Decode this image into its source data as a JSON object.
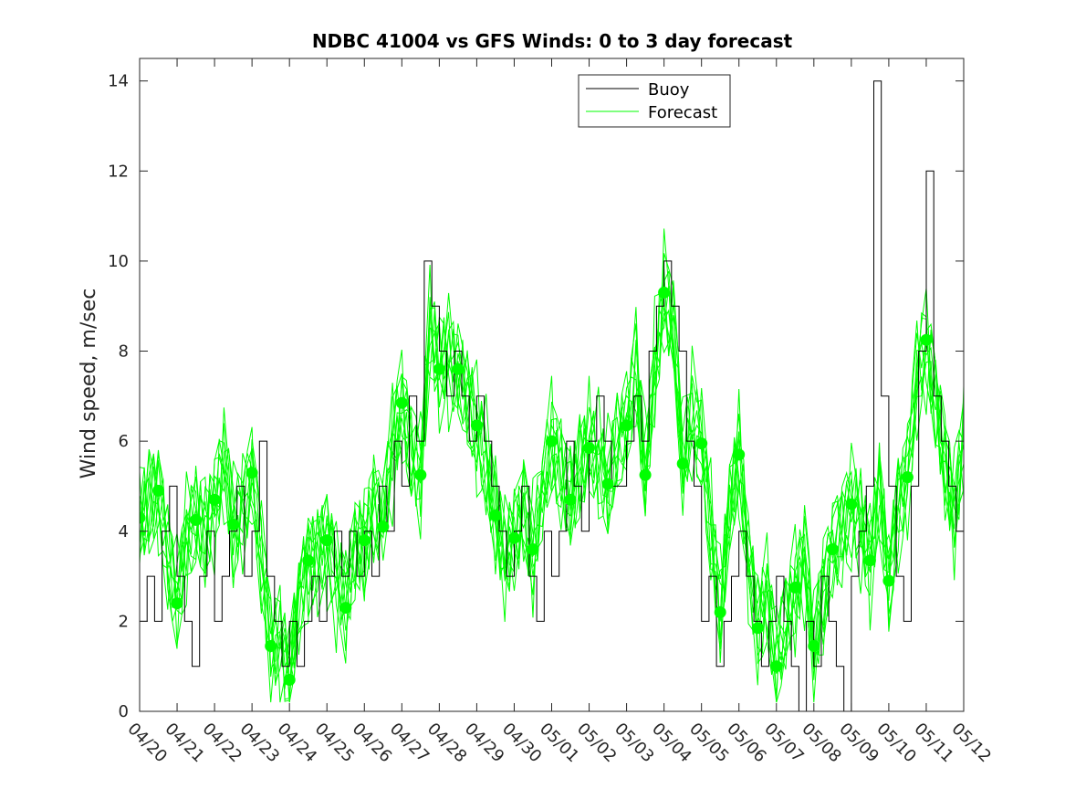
{
  "chart_data": {
    "type": "line",
    "title": "NDBC 41004 vs GFS Winds: 0 to 3 day forecast",
    "xlabel": "",
    "ylabel": "Wind speed, m/sec",
    "xlim": [
      0,
      22
    ],
    "ylim": [
      0,
      14.5
    ],
    "x_tick_labels": [
      "04/20",
      "04/21",
      "04/22",
      "04/23",
      "04/24",
      "04/25",
      "04/26",
      "04/27",
      "04/28",
      "04/29",
      "04/30",
      "05/01",
      "05/02",
      "05/03",
      "05/04",
      "05/05",
      "05/06",
      "05/07",
      "05/08",
      "05/09",
      "05/10",
      "05/11",
      "05/12"
    ],
    "y_ticks": [
      0,
      2,
      4,
      6,
      8,
      10,
      12,
      14
    ],
    "y_tick_labels": [
      "0",
      "2",
      "4",
      "6",
      "8",
      "10",
      "12",
      "14"
    ],
    "legend": {
      "position": "top-center",
      "entries": [
        "Buoy",
        "Forecast"
      ]
    },
    "grid": false,
    "colors": {
      "buoy": "#000000",
      "forecast": "#00ff00"
    },
    "buoy_series": {
      "name": "Buoy",
      "note_x_units": "days after 04/20",
      "x": [
        0.0,
        0.2,
        0.4,
        0.6,
        0.8,
        1.0,
        1.2,
        1.4,
        1.6,
        1.8,
        2.0,
        2.2,
        2.4,
        2.6,
        2.8,
        3.0,
        3.2,
        3.4,
        3.6,
        3.8,
        4.0,
        4.2,
        4.4,
        4.6,
        4.8,
        5.0,
        5.2,
        5.4,
        5.6,
        5.8,
        6.0,
        6.2,
        6.4,
        6.6,
        6.8,
        7.0,
        7.2,
        7.4,
        7.6,
        7.8,
        8.0,
        8.2,
        8.4,
        8.6,
        8.8,
        9.0,
        9.2,
        9.4,
        9.6,
        9.8,
        10.0,
        10.2,
        10.4,
        10.6,
        10.8,
        11.0,
        11.2,
        11.4,
        11.6,
        11.8,
        12.0,
        12.2,
        12.4,
        12.6,
        12.8,
        13.0,
        13.2,
        13.4,
        13.6,
        13.8,
        14.0,
        14.2,
        14.4,
        14.6,
        14.8,
        15.0,
        15.2,
        15.4,
        15.6,
        15.8,
        16.0,
        16.2,
        16.4,
        16.6,
        16.8,
        17.0,
        17.2,
        17.4,
        17.6,
        17.8,
        18.0,
        18.2,
        18.4,
        18.6,
        18.8,
        19.0,
        19.2,
        19.4,
        19.6,
        19.8,
        20.0,
        20.2,
        20.4,
        20.6,
        20.8,
        21.0,
        21.2,
        21.4,
        21.6,
        21.8,
        22.0
      ],
      "y": [
        2,
        3,
        2,
        4,
        5,
        3,
        2,
        1,
        3,
        4,
        2,
        3,
        4,
        5,
        3,
        4,
        6,
        3,
        2,
        1,
        2,
        1,
        2,
        3,
        2,
        3,
        4,
        3,
        4,
        3,
        4,
        3,
        5,
        4,
        6,
        5,
        7,
        6,
        10,
        9,
        8,
        7,
        8,
        7,
        6,
        7,
        6,
        5,
        4,
        3,
        4,
        5,
        3,
        2,
        4,
        3,
        4,
        6,
        5,
        4,
        6,
        7,
        6,
        5,
        5,
        6,
        7,
        6,
        8,
        9,
        10,
        9,
        8,
        6,
        5,
        2,
        3,
        1,
        2,
        3,
        4,
        3,
        2,
        1,
        2,
        3,
        2,
        1,
        0,
        2,
        1,
        3,
        2,
        1,
        0,
        3,
        4,
        5,
        14,
        7,
        5,
        3,
        2,
        5,
        8,
        12,
        7,
        6,
        5,
        4,
        5
      ]
    },
    "forecast_series": {
      "name": "Forecast",
      "runs": 10,
      "x": [
        0.0,
        0.25,
        0.5,
        0.75,
        1.0,
        1.25,
        1.5,
        1.75,
        2.0,
        2.25,
        2.5,
        2.75,
        3.0,
        3.25,
        3.5,
        3.75,
        4.0,
        4.25,
        4.5,
        4.75,
        5.0,
        5.25,
        5.5,
        5.75,
        6.0,
        6.25,
        6.5,
        6.75,
        7.0,
        7.25,
        7.5,
        7.75,
        8.0,
        8.25,
        8.5,
        8.75,
        9.0,
        9.25,
        9.5,
        9.75,
        10.0,
        10.25,
        10.5,
        10.75,
        11.0,
        11.25,
        11.5,
        11.75,
        12.0,
        12.25,
        12.5,
        12.75,
        13.0,
        13.25,
        13.5,
        13.75,
        14.0,
        14.25,
        14.5,
        14.75,
        15.0,
        15.25,
        15.5,
        15.75,
        16.0,
        16.25,
        16.5,
        16.75,
        17.0,
        17.25,
        17.5,
        17.75,
        18.0,
        18.25,
        18.5,
        18.75,
        19.0,
        19.25,
        19.5,
        19.75,
        20.0,
        20.25,
        20.5,
        20.75,
        21.0,
        21.25,
        21.5,
        21.75,
        22.0
      ],
      "y": [
        4.3,
        4.6,
        4.9,
        3.5,
        2.4,
        3.8,
        4.3,
        4.0,
        4.6,
        5.6,
        4.2,
        4.4,
        5.2,
        3.5,
        1.5,
        1.6,
        0.8,
        2.5,
        3.3,
        3.4,
        3.8,
        3.0,
        2.5,
        3.6,
        3.8,
        4.5,
        4.2,
        5.8,
        6.9,
        5.8,
        5.3,
        8.5,
        7.7,
        7.8,
        7.5,
        7.0,
        6.3,
        5.5,
        4.4,
        3.4,
        3.9,
        4.4,
        3.6,
        5.0,
        6.0,
        5.2,
        4.8,
        5.3,
        5.9,
        5.5,
        5.1,
        5.9,
        6.3,
        7.5,
        5.3,
        7.5,
        9.2,
        8.5,
        5.6,
        6.5,
        5.9,
        4.0,
        2.3,
        4.5,
        5.7,
        3.5,
        1.9,
        2.5,
        1.1,
        2.0,
        2.7,
        3.4,
        1.5,
        2.6,
        3.6,
        4.0,
        4.6,
        4.2,
        3.4,
        5.0,
        2.9,
        4.5,
        5.2,
        7.5,
        8.2,
        7.0,
        5.5,
        4.5,
        6.0
      ],
      "marker_points_x": [
        0.0,
        0.5,
        1.0,
        1.5,
        2.0,
        2.5,
        3.0,
        3.5,
        4.0,
        4.5,
        5.0,
        5.5,
        6.0,
        6.5,
        7.0,
        7.5,
        8.0,
        8.5,
        9.0,
        9.5,
        10.0,
        10.5,
        11.0,
        11.5,
        12.0,
        12.5,
        13.0,
        13.5,
        14.0,
        14.5,
        15.0,
        15.5,
        16.0,
        16.5,
        17.0,
        17.5,
        18.0,
        18.5,
        19.0,
        19.5,
        20.0,
        20.5,
        21.0
      ],
      "marker_points_y": [
        4.3,
        4.9,
        2.4,
        4.25,
        4.7,
        4.15,
        5.3,
        1.45,
        0.7,
        3.35,
        3.8,
        2.3,
        3.8,
        4.1,
        6.85,
        5.25,
        7.6,
        7.6,
        6.35,
        4.35,
        3.85,
        3.6,
        6.0,
        4.7,
        5.85,
        5.05,
        6.35,
        5.25,
        9.3,
        5.5,
        5.95,
        2.2,
        5.7,
        1.85,
        1.0,
        2.75,
        1.45,
        3.6,
        4.6,
        3.35,
        2.9,
        5.2,
        8.25
      ]
    }
  }
}
